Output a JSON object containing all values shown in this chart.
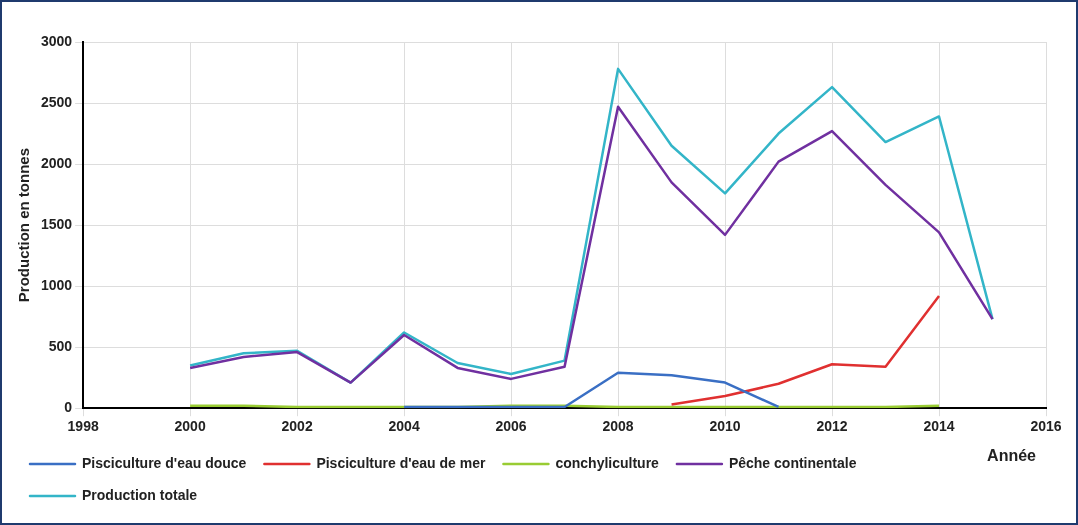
{
  "chart_data": {
    "type": "line",
    "ylabel": "Production en tonnes",
    "xlabel": "Année",
    "x": [
      2000,
      2001,
      2002,
      2003,
      2004,
      2005,
      2006,
      2007,
      2008,
      2009,
      2010,
      2011,
      2012,
      2013,
      2014,
      2015
    ],
    "series": [
      {
        "name": "Pisciculture d'eau douce",
        "color": "#3a6fc4",
        "values": [
          null,
          null,
          null,
          null,
          10,
          10,
          10,
          10,
          290,
          270,
          210,
          10,
          null,
          null,
          null,
          null
        ]
      },
      {
        "name": "Pisciculture d'eau de mer",
        "color": "#e03030",
        "values": [
          null,
          null,
          null,
          null,
          null,
          null,
          null,
          null,
          null,
          30,
          100,
          200,
          360,
          340,
          920,
          null
        ]
      },
      {
        "name": "conchyliculture",
        "color": "#99cc33",
        "values": [
          20,
          20,
          10,
          10,
          10,
          10,
          20,
          20,
          10,
          10,
          10,
          10,
          10,
          10,
          20,
          null
        ]
      },
      {
        "name": "Pêche continentale",
        "color": "#7030a0",
        "values": [
          330,
          420,
          460,
          210,
          600,
          330,
          240,
          340,
          2470,
          1850,
          1420,
          2020,
          2270,
          1830,
          1440,
          730
        ]
      },
      {
        "name": "Production totale",
        "color": "#33b5c8",
        "values": [
          350,
          450,
          470,
          210,
          620,
          370,
          280,
          390,
          2780,
          2150,
          1760,
          2250,
          2630,
          2180,
          2390,
          730
        ]
      }
    ],
    "xlim": [
      1998,
      2016
    ],
    "xticks": [
      1998,
      2000,
      2002,
      2004,
      2006,
      2008,
      2010,
      2012,
      2014,
      2016
    ],
    "ylim": [
      0,
      3000
    ],
    "yticks": [
      0,
      500,
      1000,
      1500,
      2000,
      2500,
      3000
    ],
    "grid": true,
    "legend": "bottom",
    "marker": "none",
    "line_style": "solid"
  }
}
